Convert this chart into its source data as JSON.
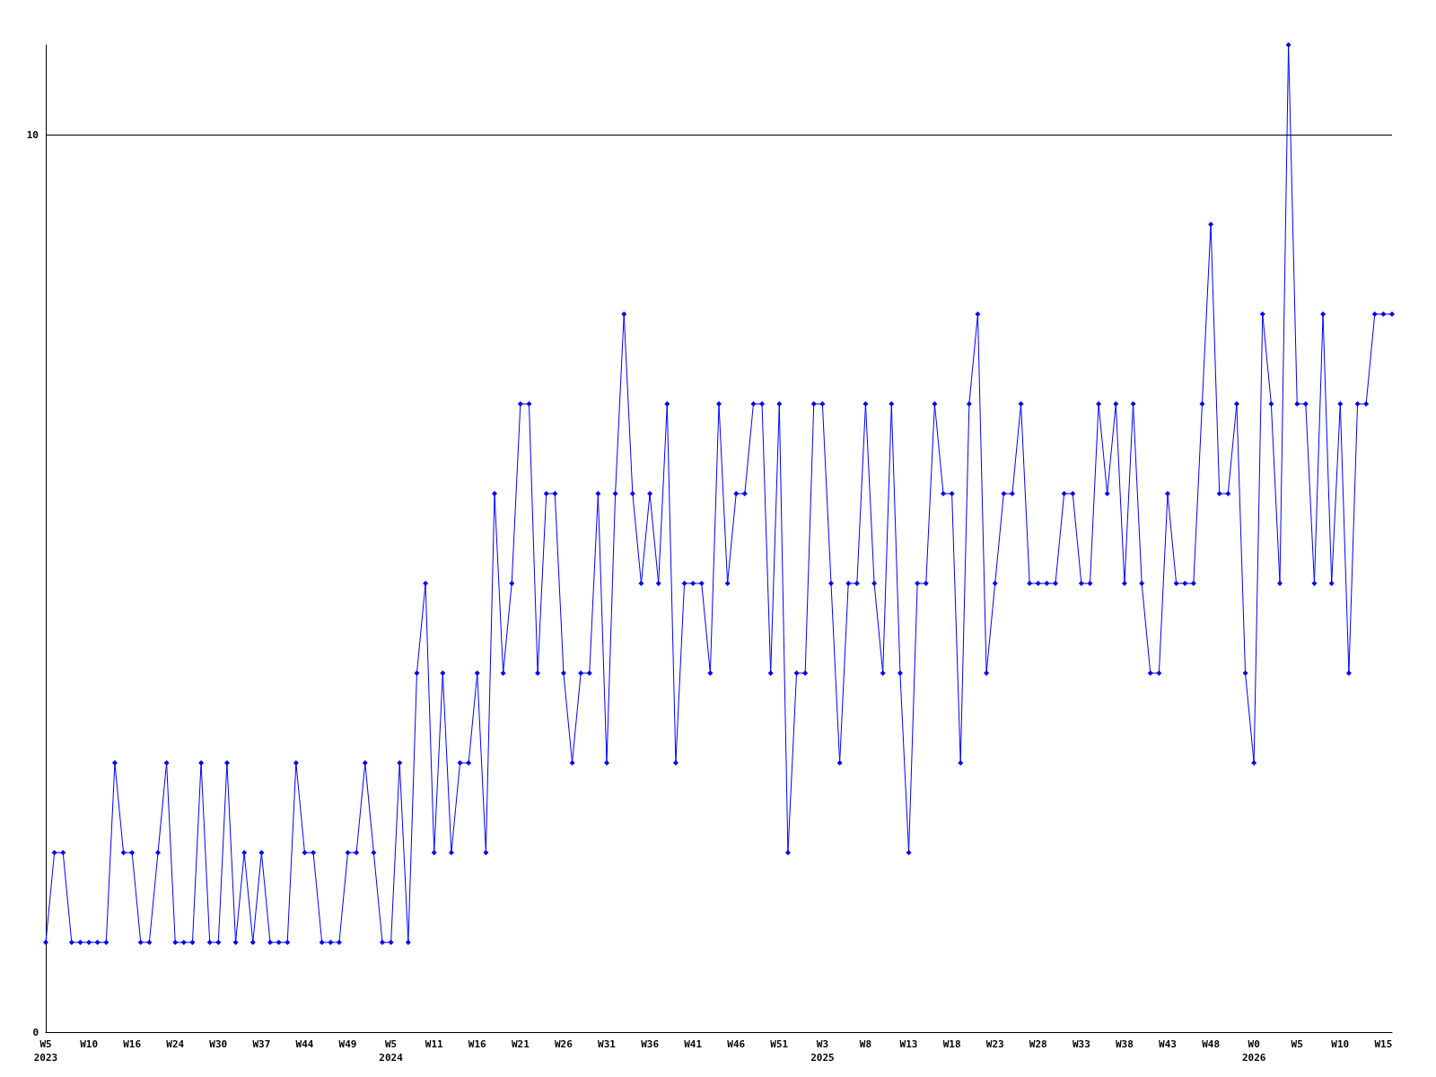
{
  "chart_data": {
    "type": "line",
    "categories": [
      "W5\n2023",
      null,
      null,
      null,
      null,
      "W10",
      null,
      null,
      null,
      null,
      "W16",
      null,
      null,
      null,
      null,
      "W24",
      null,
      null,
      null,
      null,
      "W30",
      null,
      null,
      null,
      null,
      "W37",
      null,
      null,
      null,
      null,
      "W44",
      null,
      null,
      null,
      null,
      "W49",
      null,
      null,
      null,
      null,
      "W5\n2024",
      null,
      null,
      null,
      null,
      "W11",
      null,
      null,
      null,
      null,
      "W16",
      null,
      null,
      null,
      null,
      "W21",
      null,
      null,
      null,
      null,
      "W26",
      null,
      null,
      null,
      null,
      "W31",
      null,
      null,
      null,
      null,
      "W36",
      null,
      null,
      null,
      null,
      "W41",
      null,
      null,
      null,
      null,
      "W46",
      null,
      null,
      null,
      null,
      "W51",
      null,
      null,
      null,
      null,
      "W3\n2025",
      null,
      null,
      null,
      null,
      "W8",
      null,
      null,
      null,
      null,
      "W13",
      null,
      null,
      null,
      null,
      "W18",
      null,
      null,
      null,
      null,
      "W23",
      null,
      null,
      null,
      null,
      "W28",
      null,
      null,
      null,
      null,
      "W33",
      null,
      null,
      null,
      null,
      "W38",
      null,
      null,
      null,
      null,
      "W43",
      null,
      null,
      null,
      null,
      "W48",
      null,
      null,
      null,
      null,
      "W0\n2026",
      null,
      null,
      null,
      null,
      "W5",
      null,
      null,
      null,
      null,
      "W10",
      null,
      null,
      null,
      null,
      "W15",
      null
    ],
    "series": [
      {
        "color": "#0000ff",
        "values": [
          1,
          2,
          2,
          1,
          1,
          1,
          1,
          1,
          3,
          2,
          2,
          1,
          1,
          2,
          3,
          1,
          1,
          1,
          3,
          1,
          1,
          3,
          1,
          2,
          1,
          2,
          1,
          1,
          1,
          3,
          2,
          2,
          1,
          1,
          1,
          2,
          2,
          3,
          2,
          1,
          1,
          3,
          1,
          4,
          5,
          2,
          4,
          2,
          3,
          3,
          4,
          2,
          6,
          4,
          5,
          7,
          7,
          4,
          6,
          6,
          4,
          3,
          4,
          4,
          6,
          3,
          6,
          8,
          6,
          5,
          6,
          5,
          7,
          3,
          5,
          5,
          5,
          4,
          7,
          5,
          6,
          6,
          7,
          7,
          4,
          7,
          2,
          4,
          4,
          7,
          7,
          5,
          3,
          5,
          5,
          7,
          5,
          4,
          7,
          4,
          2,
          5,
          5,
          7,
          6,
          6,
          3,
          7,
          8,
          4,
          5,
          6,
          6,
          7,
          5,
          5,
          5,
          5,
          6,
          6,
          5,
          5,
          7,
          6,
          7,
          5,
          7,
          5,
          4,
          4,
          6,
          5,
          5,
          5,
          7,
          9,
          6,
          6,
          7,
          4,
          3,
          8,
          7,
          5,
          11,
          7,
          7,
          5,
          8,
          5,
          7,
          4,
          7,
          7,
          8,
          8,
          8
        ]
      }
    ],
    "ylim": [
      0,
      11
    ],
    "yticks": [
      0,
      10
    ],
    "grid": "y",
    "marker": "diamond",
    "line_style": "solid"
  }
}
